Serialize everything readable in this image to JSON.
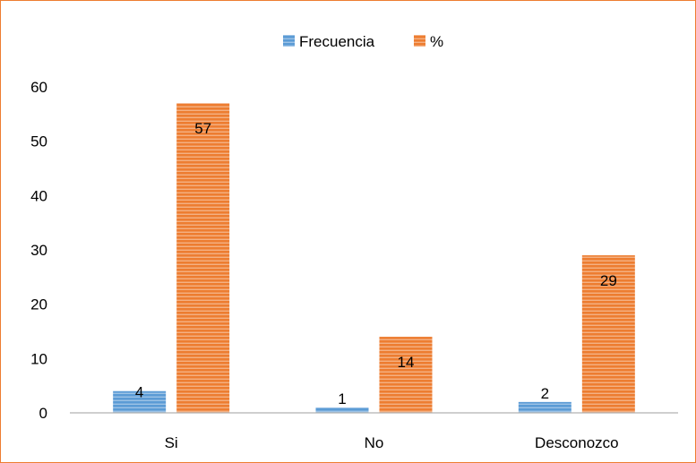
{
  "chart_data": {
    "type": "bar",
    "categories": [
      "Si",
      "No",
      "Desconozco"
    ],
    "series": [
      {
        "name": "Frecuencia",
        "values": [
          4,
          1,
          2
        ],
        "color": "#5B9BD5"
      },
      {
        "name": "%",
        "values": [
          57,
          14,
          29
        ],
        "color": "#ED7D31"
      }
    ],
    "data_labels": [
      [
        "4",
        "1",
        "2"
      ],
      [
        "57",
        "14",
        "29"
      ]
    ],
    "y_ticks": [
      "0",
      "10",
      "20",
      "30",
      "40",
      "50",
      "60"
    ],
    "ylim": [
      0,
      60
    ],
    "grid": false,
    "legend_position": "top-center",
    "bar_pattern": "horizontal-stripes"
  }
}
